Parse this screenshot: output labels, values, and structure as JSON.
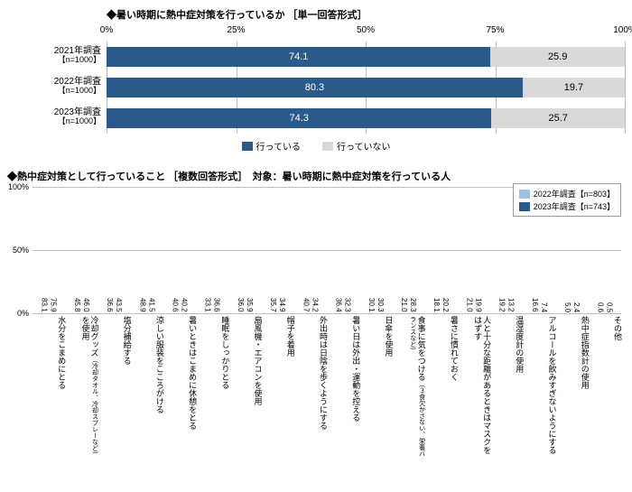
{
  "chart1": {
    "title": "◆暑い時期に熱中症対策を行っているか ［単一回答形式］",
    "type": "stacked-horizontal-bar",
    "xlim": [
      0,
      100
    ],
    "xticks": [
      0,
      25,
      50,
      75,
      100
    ],
    "xtick_labels": [
      "0%",
      "25%",
      "50%",
      "75%",
      "100%"
    ],
    "series": [
      {
        "label": "行っている",
        "color": "#2a5a8a"
      },
      {
        "label": "行っていない",
        "color": "#d9d9d9"
      }
    ],
    "rows": [
      {
        "label": "2021年調査",
        "sublabel": "【n=1000】",
        "values": [
          74.1,
          25.9
        ]
      },
      {
        "label": "2022年調査",
        "sublabel": "【n=1000】",
        "values": [
          80.3,
          19.7
        ]
      },
      {
        "label": "2023年調査",
        "sublabel": "【n=1000】",
        "values": [
          74.3,
          25.7
        ]
      }
    ],
    "background_color": "#ffffff",
    "grid_color": "#bfbfbf"
  },
  "chart2": {
    "title": "◆熱中症対策として行っていること ［複数回答形式］　対象：暑い時期に熱中症対策を行っている人",
    "type": "grouped-vertical-bar",
    "ylim": [
      0,
      100
    ],
    "yticks": [
      0,
      50,
      100
    ],
    "ytick_labels": [
      "0%",
      "50%",
      "100%"
    ],
    "series": [
      {
        "label": "2022年調査【n=803】",
        "color": "#9cc3e4"
      },
      {
        "label": "2023年調査【n=743】",
        "color": "#2a5a8a"
      }
    ],
    "categories": [
      {
        "label": "水分をこまめにとる"
      },
      {
        "label": "冷却グッズ",
        "sublabel": "（冷却タオル、冷却スプレーなど）",
        "suffix": "を使用"
      },
      {
        "label": "塩分補給する"
      },
      {
        "label": "涼しい服装をこころがける"
      },
      {
        "label": "暑いときはこまめに休憩をとる"
      },
      {
        "label": "睡眠をしっかりとる"
      },
      {
        "label": "扇風機・エアコンを使用"
      },
      {
        "label": "帽子を着用"
      },
      {
        "label": "外出時は日陰を歩くようにする"
      },
      {
        "label": "暑い日は外出・運動を控える"
      },
      {
        "label": "日傘を使用"
      },
      {
        "label": "食事に気をつける",
        "sublabel": "（３食欠かさない、栄養バランスなど）"
      },
      {
        "label": "暑さに慣れておく"
      },
      {
        "label": "人と十分な距離があるときはマスクをはずす"
      },
      {
        "label": "温湿度計の使用"
      },
      {
        "label": "アルコールを飲みすぎないようにする"
      },
      {
        "label": "熱中症指数計の使用"
      },
      {
        "label": "その他"
      }
    ],
    "values2022": [
      83.1,
      45.8,
      36.6,
      48.9,
      40.6,
      33.1,
      36.0,
      35.7,
      40.7,
      36.4,
      30.1,
      21.0,
      18.1,
      21.0,
      19.2,
      16.6,
      5.0,
      0.6
    ],
    "values2023": [
      75.9,
      46.0,
      43.5,
      41.5,
      40.2,
      36.6,
      35.9,
      34.9,
      34.2,
      32.3,
      30.3,
      28.3,
      20.2,
      19.9,
      13.2,
      7.4,
      2.4,
      0.5
    ],
    "background_color": "#ffffff",
    "grid_color": "#bfbfbf"
  }
}
